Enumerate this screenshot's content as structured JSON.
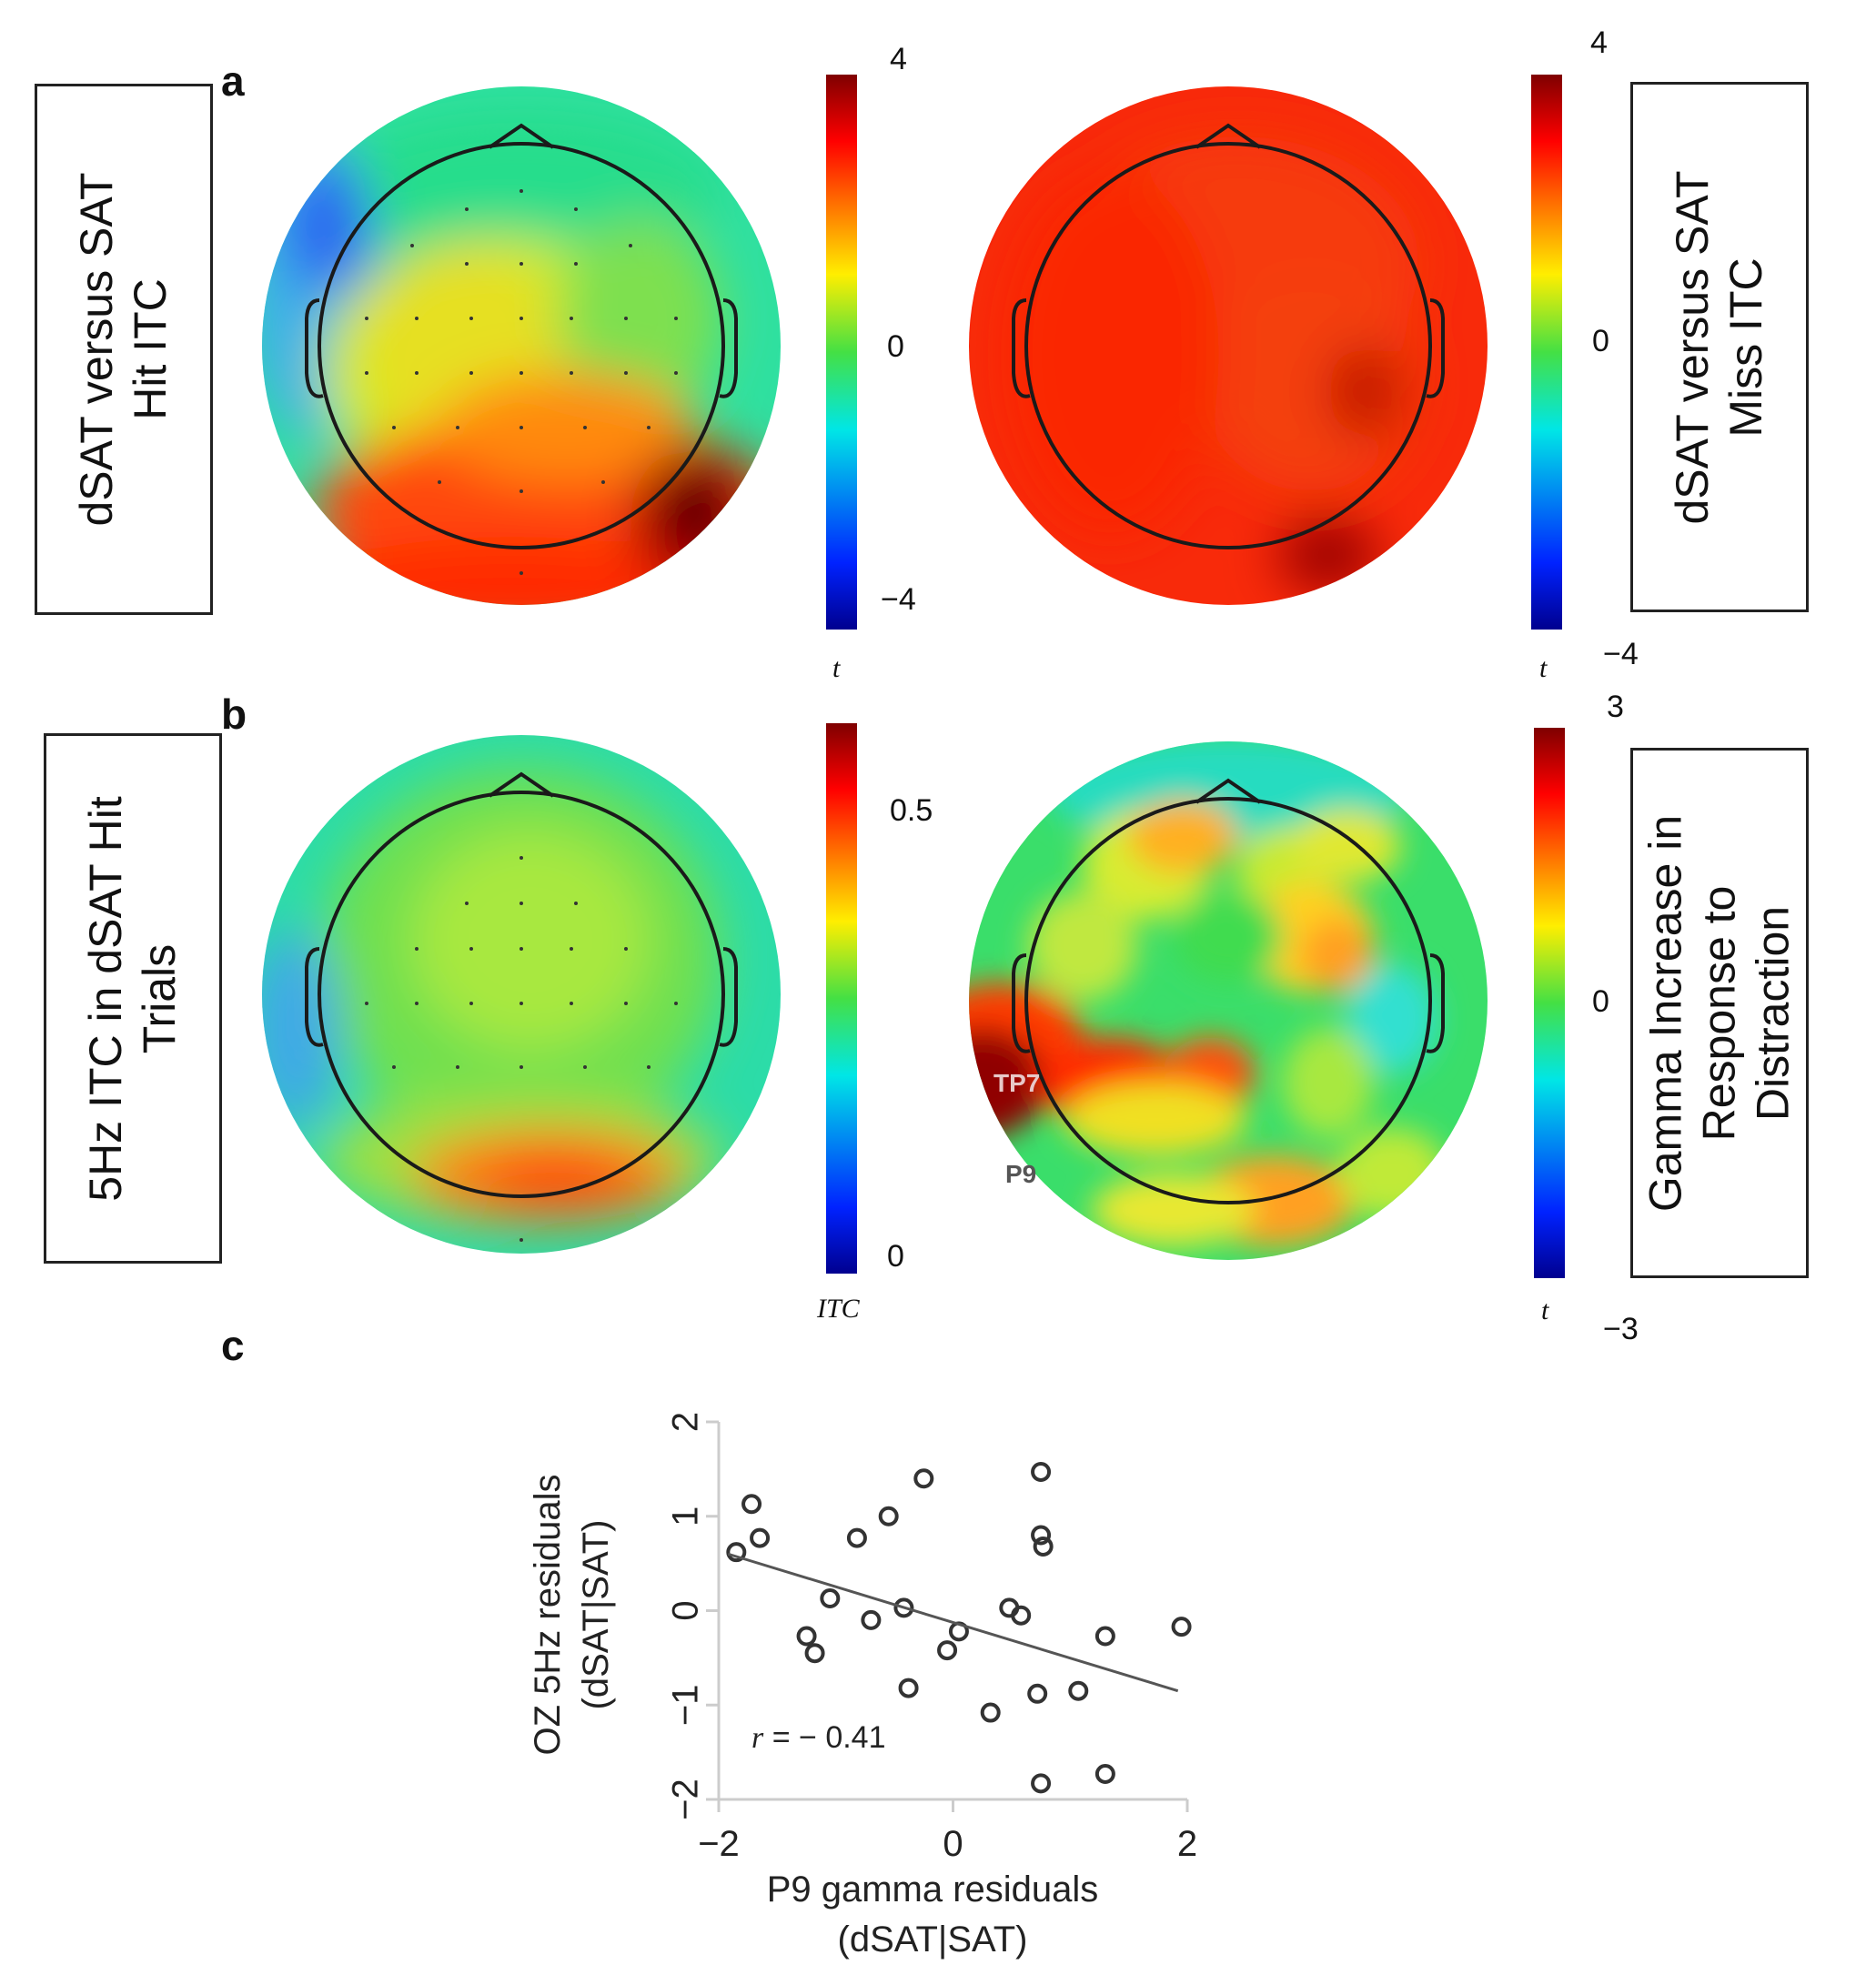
{
  "figure": {
    "panel_a": {
      "letter": "a",
      "left_box": {
        "lines": [
          "dSAT versus SAT",
          "Hit ITC"
        ]
      },
      "right_box": {
        "lines": [
          "dSAT versus SAT",
          "Miss ITC"
        ]
      },
      "colorbar_left": {
        "max": "4",
        "mid": "0",
        "min": "−4",
        "unit": "t"
      },
      "colorbar_right": {
        "max": "4",
        "mid": "0",
        "min": "−4",
        "unit": "t"
      }
    },
    "panel_b": {
      "letter": "b",
      "left_box": {
        "lines": [
          "5Hz ITC in dSAT Hit",
          "Trials"
        ]
      },
      "right_box": {
        "lines": [
          "Gamma Increase in",
          "Response to",
          "Distraction"
        ]
      },
      "colorbar_left": {
        "max": "0.5",
        "min": "0",
        "unit": "ITC"
      },
      "colorbar_right": {
        "max": "3",
        "mid": "0",
        "min": "−3",
        "unit": "t"
      },
      "electrode_labels": [
        "TP7",
        "P9"
      ]
    },
    "panel_c": {
      "letter": "c"
    },
    "colors": {
      "jet_dark_red": "#7f0000",
      "jet_red": "#ff2a00",
      "jet_yellow": "#ffe600",
      "jet_green": "#3ddc3d",
      "jet_cyan": "#00e6c8",
      "jet_blue": "#0033ff",
      "jet_dark_blue": "#00008f"
    }
  },
  "chart_data": {
    "type": "scatter",
    "title": "",
    "xlabel_lines": [
      "P9 gamma residuals",
      "(dSAT|SAT)"
    ],
    "ylabel_lines": [
      "OZ 5Hz residuals",
      "(dSAT|SAT)"
    ],
    "xlim": [
      -2,
      2
    ],
    "ylim": [
      -2,
      2
    ],
    "xticks": [
      -2,
      0,
      2
    ],
    "yticks": [
      -2,
      -1,
      0,
      1,
      2
    ],
    "xtick_labels": [
      "−2",
      "0",
      "2"
    ],
    "ytick_labels": [
      "−2",
      "−1",
      "0",
      "1",
      "2"
    ],
    "annotation": {
      "r_symbol": "r",
      "text": " = − 0.41"
    },
    "fit_line": {
      "x": [
        -1.92,
        1.92
      ],
      "y": [
        0.6,
        -0.85
      ]
    },
    "points": [
      {
        "x": -1.85,
        "y": 0.62
      },
      {
        "x": -1.72,
        "y": 1.13
      },
      {
        "x": -1.65,
        "y": 0.77
      },
      {
        "x": -0.82,
        "y": 0.77
      },
      {
        "x": -0.55,
        "y": 1.0
      },
      {
        "x": -0.25,
        "y": 1.4
      },
      {
        "x": 0.75,
        "y": 1.47
      },
      {
        "x": 0.75,
        "y": 0.8
      },
      {
        "x": 0.77,
        "y": 0.68
      },
      {
        "x": -1.05,
        "y": 0.13
      },
      {
        "x": -0.7,
        "y": -0.1
      },
      {
        "x": -0.42,
        "y": 0.03
      },
      {
        "x": 0.48,
        "y": 0.03
      },
      {
        "x": 0.58,
        "y": -0.05
      },
      {
        "x": 0.05,
        "y": -0.22
      },
      {
        "x": -0.05,
        "y": -0.42
      },
      {
        "x": -1.25,
        "y": -0.27
      },
      {
        "x": -1.18,
        "y": -0.45
      },
      {
        "x": 1.3,
        "y": -0.27
      },
      {
        "x": 1.95,
        "y": -0.17
      },
      {
        "x": -0.38,
        "y": -0.82
      },
      {
        "x": 0.72,
        "y": -0.88
      },
      {
        "x": 1.07,
        "y": -0.85
      },
      {
        "x": 0.32,
        "y": -1.08
      },
      {
        "x": 0.75,
        "y": -1.83
      },
      {
        "x": 1.3,
        "y": -1.73
      }
    ]
  }
}
